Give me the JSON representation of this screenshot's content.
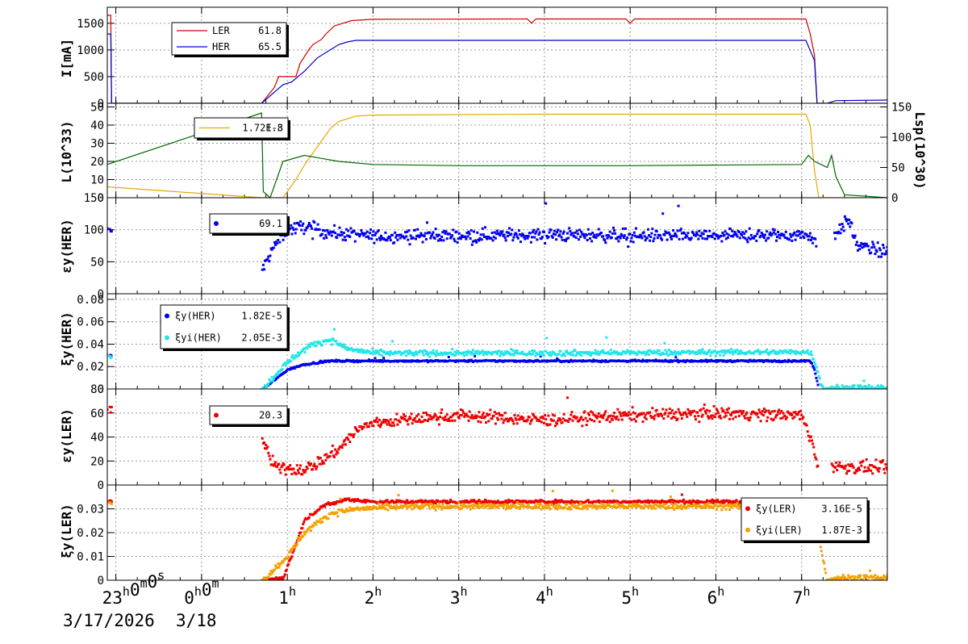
{
  "colors": {
    "ler": "#cc0000",
    "her": "#0000cc",
    "lum": "#e6a800",
    "lsp": "#006600",
    "her_dots": "#0000ee",
    "xi_her": "#0000ee",
    "xi_yi_her": "#22e6e6",
    "ler_dots": "#ee0000",
    "xi_ler": "#ee0000",
    "xi_yi_ler": "#f5a000",
    "grid": "#999999"
  },
  "time_axis": {
    "x_range_hours": [
      -1.1,
      8.0
    ],
    "tick_labels": [
      {
        "text": "23",
        "sup": "h",
        "text2": "0",
        "sup2": "m",
        "text3": "0",
        "sup3": "s",
        "hour": -1.0
      },
      {
        "text": "0",
        "sup": "h",
        "text2": "0",
        "sup2": "m",
        "hour": 0.0
      },
      {
        "text": "1",
        "sup": "h",
        "hour": 1.0
      },
      {
        "text": "2",
        "sup": "h",
        "hour": 2.0
      },
      {
        "text": "3",
        "sup": "h",
        "hour": 3.0
      },
      {
        "text": "4",
        "sup": "h",
        "hour": 4.0
      },
      {
        "text": "5",
        "sup": "h",
        "hour": 5.0
      },
      {
        "text": "6",
        "sup": "h",
        "hour": 6.0
      },
      {
        "text": "7",
        "sup": "h",
        "hour": 7.0
      }
    ],
    "date_start": "3/17/2026",
    "date_next": "3/18"
  },
  "chart_data": [
    {
      "type": "line",
      "id": "current",
      "ylabel": "I[mA]",
      "ylim": [
        0,
        1800
      ],
      "yticks": [
        0,
        500,
        1000,
        1500
      ],
      "legend": [
        {
          "name": "LER",
          "value": "61.8",
          "color": "ler"
        },
        {
          "name": "HER",
          "value": "65.5",
          "color": "her"
        }
      ],
      "series": [
        {
          "name": "LER",
          "color": "ler",
          "points": [
            [
              -1.1,
              1650
            ],
            [
              -1.06,
              1650
            ],
            [
              -1.05,
              0
            ],
            [
              0.7,
              0
            ],
            [
              0.85,
              300
            ],
            [
              0.9,
              500
            ],
            [
              1.1,
              500
            ],
            [
              1.15,
              750
            ],
            [
              1.25,
              1000
            ],
            [
              1.3,
              1100
            ],
            [
              1.4,
              1200
            ],
            [
              1.45,
              1300
            ],
            [
              1.55,
              1450
            ],
            [
              1.75,
              1550
            ],
            [
              2.0,
              1575
            ],
            [
              3.8,
              1580
            ],
            [
              3.85,
              1500
            ],
            [
              3.9,
              1580
            ],
            [
              4.95,
              1580
            ],
            [
              5.0,
              1500
            ],
            [
              5.05,
              1580
            ],
            [
              7.05,
              1580
            ],
            [
              7.1,
              1300
            ],
            [
              7.15,
              900
            ],
            [
              7.18,
              0
            ],
            [
              8.0,
              0
            ]
          ]
        },
        {
          "name": "HER",
          "color": "her",
          "points": [
            [
              -1.1,
              1300
            ],
            [
              -1.06,
              1300
            ],
            [
              -1.05,
              0
            ],
            [
              0.7,
              0
            ],
            [
              0.95,
              350
            ],
            [
              1.05,
              400
            ],
            [
              1.2,
              600
            ],
            [
              1.35,
              850
            ],
            [
              1.5,
              1000
            ],
            [
              1.6,
              1100
            ],
            [
              1.7,
              1150
            ],
            [
              1.8,
              1180
            ],
            [
              7.05,
              1180
            ],
            [
              7.15,
              800
            ],
            [
              7.18,
              0
            ],
            [
              7.3,
              0
            ],
            [
              7.4,
              50
            ],
            [
              8.0,
              60
            ]
          ]
        }
      ]
    },
    {
      "type": "line",
      "id": "luminosity",
      "ylabel": "L(10^33)",
      "ylabel_right": "Lsp(10^30)",
      "ylim": [
        0,
        52
      ],
      "yticks": [
        0,
        10,
        20,
        30,
        40,
        50
      ],
      "y2lim": [
        0,
        156
      ],
      "y2ticks": [
        0,
        50,
        100,
        150
      ],
      "legend": [
        {
          "name": "",
          "value": "1.72E-3",
          "color": "lum"
        }
      ],
      "legend_overlap_value": "1.8",
      "series": [
        {
          "name": "L",
          "color": "lum",
          "points": [
            [
              -1.1,
              6
            ],
            [
              0.7,
              0
            ],
            [
              0.95,
              0
            ],
            [
              1.1,
              10
            ],
            [
              1.2,
              18
            ],
            [
              1.35,
              28
            ],
            [
              1.5,
              38
            ],
            [
              1.6,
              42
            ],
            [
              1.8,
              45
            ],
            [
              2.0,
              45.5
            ],
            [
              4.0,
              46
            ],
            [
              7.05,
              46
            ],
            [
              7.1,
              40
            ],
            [
              7.15,
              15
            ],
            [
              7.2,
              0
            ],
            [
              8.0,
              0
            ]
          ]
        },
        {
          "name": "Lsp",
          "color": "lsp",
          "axis": "right",
          "points": [
            [
              -1.1,
              55
            ],
            [
              0.7,
              140
            ],
            [
              0.72,
              10
            ],
            [
              0.8,
              0
            ],
            [
              0.95,
              60
            ],
            [
              1.2,
              70
            ],
            [
              1.4,
              65
            ],
            [
              1.6,
              60
            ],
            [
              2.0,
              55
            ],
            [
              3.0,
              53
            ],
            [
              5.0,
              53
            ],
            [
              7.0,
              55
            ],
            [
              7.08,
              70
            ],
            [
              7.15,
              60
            ],
            [
              7.3,
              50
            ],
            [
              7.35,
              70
            ],
            [
              7.4,
              35
            ],
            [
              7.5,
              5
            ],
            [
              8.0,
              0
            ]
          ]
        }
      ]
    },
    {
      "type": "scatter",
      "id": "eps_her",
      "ylabel": "εy(HER)",
      "ylim": [
        0,
        150
      ],
      "yticks": [
        0,
        50,
        100,
        150
      ],
      "legend": [
        {
          "name": "",
          "value": "69.1",
          "color": "her_dots"
        }
      ],
      "series": [
        {
          "name": "",
          "color": "her_dots",
          "profile": [
            [
              -1.1,
              97
            ],
            [
              -1.06,
              97
            ],
            [
              0.72,
              40
            ],
            [
              0.85,
              75
            ],
            [
              1.0,
              100
            ],
            [
              1.2,
              105
            ],
            [
              1.5,
              95
            ],
            [
              2.0,
              90
            ],
            [
              4.0,
              92
            ],
            [
              6.0,
              90
            ],
            [
              7.1,
              92
            ],
            [
              7.15,
              80
            ],
            [
              7.4,
              95
            ],
            [
              7.55,
              115
            ],
            [
              7.65,
              75
            ],
            [
              8.0,
              65
            ]
          ],
          "gaps": [
            [
              -1.04,
              0.7
            ],
            [
              7.18,
              7.38
            ]
          ],
          "noise": 10
        }
      ]
    },
    {
      "type": "scatter",
      "id": "xi_her",
      "ylabel": "ξy(HER)",
      "ylim": [
        0,
        0.085
      ],
      "yticks": [
        0,
        0.02,
        0.04,
        0.06,
        0.08
      ],
      "legend": [
        {
          "name": "ξy(HER)",
          "value": "1.82E-5",
          "color": "xi_her"
        },
        {
          "name": "ξyi(HER)",
          "value": "2.05E-3",
          "color": "xi_yi_her"
        }
      ],
      "series": [
        {
          "name": "ξy(HER)",
          "color": "xi_her",
          "profile": [
            [
              -1.1,
              0.03
            ],
            [
              -1.06,
              0.03
            ],
            [
              0.72,
              0.0
            ],
            [
              1.0,
              0.017
            ],
            [
              1.2,
              0.022
            ],
            [
              1.5,
              0.025
            ],
            [
              2.0,
              0.025
            ],
            [
              7.1,
              0.025
            ],
            [
              7.15,
              0.018
            ],
            [
              7.2,
              0.0
            ]
          ],
          "gaps": [
            [
              -1.04,
              0.7
            ],
            [
              7.2,
              8.1
            ]
          ],
          "noise": 0.0008
        },
        {
          "name": "ξyi(HER)",
          "color": "xi_yi_her",
          "profile": [
            [
              -1.1,
              0.03
            ],
            [
              -1.06,
              0.03
            ],
            [
              0.72,
              0.0
            ],
            [
              0.95,
              0.02
            ],
            [
              1.1,
              0.03
            ],
            [
              1.3,
              0.04
            ],
            [
              1.5,
              0.044
            ],
            [
              1.7,
              0.036
            ],
            [
              2.0,
              0.032
            ],
            [
              4.0,
              0.032
            ],
            [
              7.1,
              0.033
            ],
            [
              7.15,
              0.025
            ],
            [
              7.25,
              0.0
            ],
            [
              7.35,
              0.001
            ],
            [
              8.0,
              0.001
            ]
          ],
          "gaps": [
            [
              -1.04,
              0.7
            ]
          ],
          "noise": 0.0025
        }
      ]
    },
    {
      "type": "scatter",
      "id": "eps_ler",
      "ylabel": "εy(LER)",
      "ylim": [
        0,
        80
      ],
      "yticks": [
        0,
        20,
        40,
        60,
        80
      ],
      "legend": [
        {
          "name": "",
          "value": "20.3",
          "color": "ler_dots"
        }
      ],
      "series": [
        {
          "name": "",
          "color": "ler_dots",
          "profile": [
            [
              -1.1,
              62
            ],
            [
              -1.06,
              62
            ],
            [
              0.72,
              38
            ],
            [
              0.8,
              20
            ],
            [
              0.9,
              14
            ],
            [
              1.2,
              13
            ],
            [
              1.4,
              20
            ],
            [
              1.6,
              30
            ],
            [
              1.8,
              45
            ],
            [
              2.0,
              52
            ],
            [
              3.0,
              58
            ],
            [
              4.0,
              54
            ],
            [
              5.0,
              58
            ],
            [
              6.0,
              60
            ],
            [
              7.0,
              58
            ],
            [
              7.1,
              40
            ],
            [
              7.18,
              20
            ],
            [
              7.4,
              15
            ],
            [
              8.0,
              14
            ]
          ],
          "gaps": [
            [
              -1.04,
              0.7
            ],
            [
              7.2,
              7.35
            ]
          ],
          "noise": 5
        }
      ]
    },
    {
      "type": "scatter",
      "id": "xi_ler",
      "ylabel": "ξy(LER)",
      "ylim": [
        0,
        0.04
      ],
      "yticks": [
        0,
        0.01,
        0.02,
        0.03
      ],
      "legend": [
        {
          "name": "ξy(LER)",
          "value": "3.16E-5",
          "color": "xi_ler"
        },
        {
          "name": "ξyi(LER)",
          "value": "1.87E-3",
          "color": "xi_yi_ler"
        }
      ],
      "series": [
        {
          "name": "ξy(LER)",
          "color": "xi_ler",
          "profile": [
            [
              -1.1,
              0.033
            ],
            [
              -1.06,
              0.033
            ],
            [
              0.72,
              0.0
            ],
            [
              0.95,
              0.001
            ],
            [
              1.05,
              0.01
            ],
            [
              1.2,
              0.025
            ],
            [
              1.4,
              0.031
            ],
            [
              1.7,
              0.034
            ],
            [
              2.0,
              0.033
            ],
            [
              7.1,
              0.033
            ],
            [
              7.18,
              0.03
            ]
          ],
          "gaps": [
            [
              -1.04,
              0.7
            ],
            [
              7.2,
              8.1
            ]
          ],
          "noise": 0.0007
        },
        {
          "name": "ξyi(LER)",
          "color": "xi_yi_ler",
          "profile": [
            [
              -1.1,
              0.033
            ],
            [
              -1.06,
              0.033
            ],
            [
              0.72,
              0.0
            ],
            [
              1.0,
              0.01
            ],
            [
              1.2,
              0.02
            ],
            [
              1.5,
              0.028
            ],
            [
              1.8,
              0.03
            ],
            [
              2.5,
              0.031
            ],
            [
              7.1,
              0.031
            ],
            [
              7.18,
              0.022
            ],
            [
              7.3,
              0.0
            ],
            [
              7.4,
              0.001
            ],
            [
              8.0,
              0.001
            ]
          ],
          "gaps": [
            [
              -1.04,
              0.7
            ]
          ],
          "noise": 0.0012
        }
      ]
    }
  ]
}
